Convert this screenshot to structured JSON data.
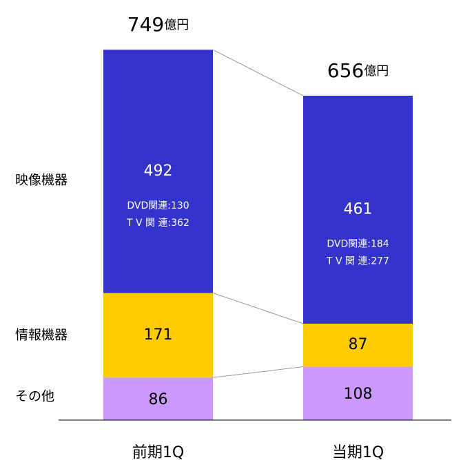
{
  "chart_data": {
    "type": "bar",
    "stacked": true,
    "categories": [
      "前期1Q",
      "当期1Q"
    ],
    "series": [
      {
        "name": "その他",
        "color": "#cc99ff",
        "values": [
          86,
          108
        ]
      },
      {
        "name": "情報機器",
        "color": "#ffcc00",
        "values": [
          171,
          87
        ]
      },
      {
        "name": "映像機器",
        "color": "#3333cc",
        "values": [
          492,
          461
        ]
      }
    ],
    "totals": [
      749,
      656
    ],
    "total_unit": "億円",
    "annotations": [
      [
        {
          "label": "DVD関連:",
          "value": 130
        },
        {
          "label": "T V 関 連:",
          "value": 362
        }
      ],
      [
        {
          "label": "DVD関連:",
          "value": 184
        },
        {
          "label": "T V 関 連:",
          "value": 277
        }
      ]
    ]
  }
}
